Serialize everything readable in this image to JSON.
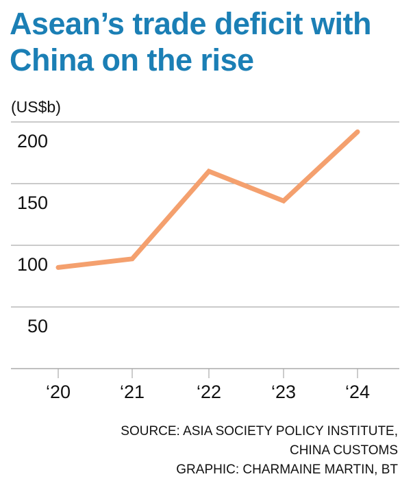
{
  "chart_data": {
    "type": "line",
    "title": "Asean’s trade deficit with China on the rise",
    "ylabel": "(US$b)",
    "xlabel": "",
    "categories": [
      "‘20",
      "‘21",
      "‘22",
      "‘23",
      "‘24"
    ],
    "series": [
      {
        "values": [
          82,
          89,
          160,
          136,
          192
        ],
        "color": "#f4a06e"
      }
    ],
    "ylim": [
      0,
      200
    ],
    "yticks": [
      50,
      100,
      150,
      200
    ],
    "grid": true,
    "title_color": "#1b7fb5"
  },
  "source": {
    "line1": "SOURCE: ASIA SOCIETY POLICY INSTITUTE,",
    "line2": "CHINA CUSTOMS",
    "line3": "GRAPHIC: CHARMAINE MARTIN, BT"
  }
}
